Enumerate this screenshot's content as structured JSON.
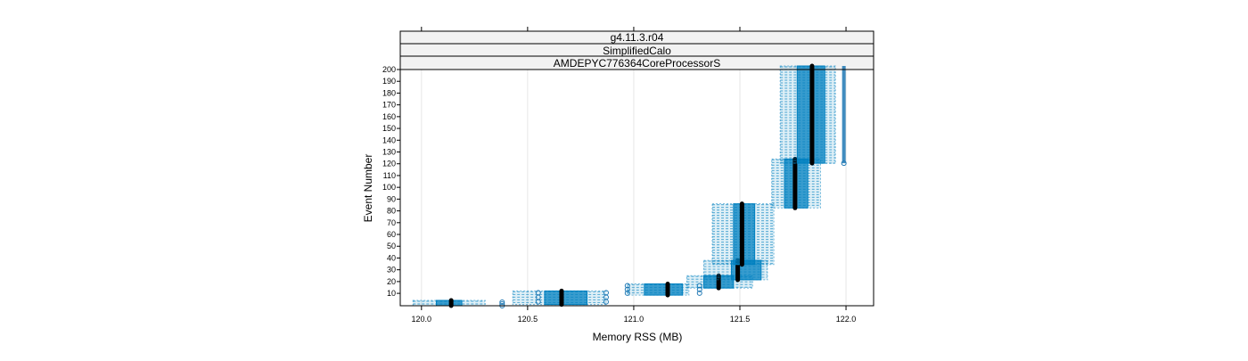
{
  "chart_data": {
    "type": "box",
    "strips": [
      "g4.11.3.r04",
      "SimplifiedCalo",
      "AMDEPYC776364CoreProcessorS"
    ],
    "xlabel": "Memory RSS (MB)",
    "ylabel": "Event Number",
    "xlim": [
      119.9,
      122.13
    ],
    "ylim": [
      1,
      200
    ],
    "xticks": [
      "120.0",
      "120.5",
      "121.0",
      "121.5",
      "122.0"
    ],
    "yticks": [
      "10",
      "20",
      "30",
      "40",
      "50",
      "60",
      "70",
      "80",
      "90",
      "100",
      "110",
      "120",
      "130",
      "140",
      "150",
      "160",
      "170",
      "180",
      "190",
      "200"
    ],
    "grid": true,
    "colors": {
      "box": "#0080c0",
      "median": "#000000",
      "outlier": "#1f78b4"
    },
    "series": [
      {
        "events": [
          1,
          1
        ],
        "min": 119.96,
        "q1": 120.07,
        "median": 120.14,
        "q3": 120.19,
        "max": 120.3,
        "outliers": [
          120.38
        ]
      },
      {
        "events": [
          2,
          9
        ],
        "min": 120.43,
        "q1": 120.58,
        "median": 120.66,
        "q3": 120.78,
        "max": 120.87,
        "outliers": [
          120.55,
          120.87
        ]
      },
      {
        "events": [
          10,
          15
        ],
        "min": 120.97,
        "q1": 121.05,
        "median": 121.16,
        "q3": 121.23,
        "max": 121.26,
        "outliers": [
          120.97,
          121.31
        ]
      },
      {
        "events": [
          16,
          22
        ],
        "min": 121.25,
        "q1": 121.33,
        "median": 121.4,
        "q3": 121.47,
        "max": 121.56,
        "outliers": []
      },
      {
        "events": [
          23,
          35
        ],
        "min": 121.33,
        "q1": 121.46,
        "median": 121.49,
        "q3": 121.6,
        "max": 121.63,
        "outliers": []
      },
      {
        "events": [
          36,
          83
        ],
        "min": 121.37,
        "q1": 121.47,
        "median": 121.51,
        "q3": 121.57,
        "max": 121.66,
        "outliers": []
      },
      {
        "events": [
          84,
          121
        ],
        "min": 121.65,
        "q1": 121.71,
        "median": 121.76,
        "q3": 121.82,
        "max": 121.88,
        "outliers": []
      },
      {
        "events": [
          122,
          200
        ],
        "min": 121.69,
        "q1": 121.77,
        "median": 121.84,
        "q3": 121.9,
        "max": 121.95,
        "outliers": [
          121.99
        ]
      }
    ]
  }
}
